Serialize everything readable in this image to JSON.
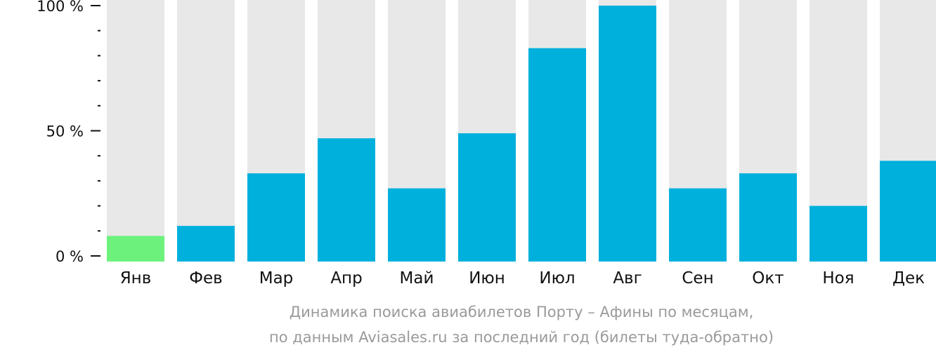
{
  "chart_data": {
    "type": "bar",
    "categories": [
      "Янв",
      "Фев",
      "Мар",
      "Апр",
      "Май",
      "Июн",
      "Июл",
      "Авг",
      "Сен",
      "Окт",
      "Ноя",
      "Дек"
    ],
    "values": [
      8,
      12,
      33,
      47,
      27,
      49,
      83,
      100,
      27,
      33,
      20,
      38
    ],
    "highlight_index": 0,
    "ylim": [
      0,
      100
    ],
    "yticks": [
      {
        "value": 0,
        "label": "0 %"
      },
      {
        "value": 50,
        "label": "50 %"
      },
      {
        "value": 100,
        "label": "100 %"
      }
    ],
    "minor_ticks": 10,
    "caption_line1": "Динамика поиска авиабилетов Порту – Афины по месяцам,",
    "caption_line2": "по данным Aviasales.ru за последний год (билеты туда-обратно)",
    "colors": {
      "bar": "#00b0dc",
      "highlight": "#6cf27c",
      "track": "#e8e8e8",
      "axis": "#111111",
      "caption": "#9a9a9a"
    }
  }
}
